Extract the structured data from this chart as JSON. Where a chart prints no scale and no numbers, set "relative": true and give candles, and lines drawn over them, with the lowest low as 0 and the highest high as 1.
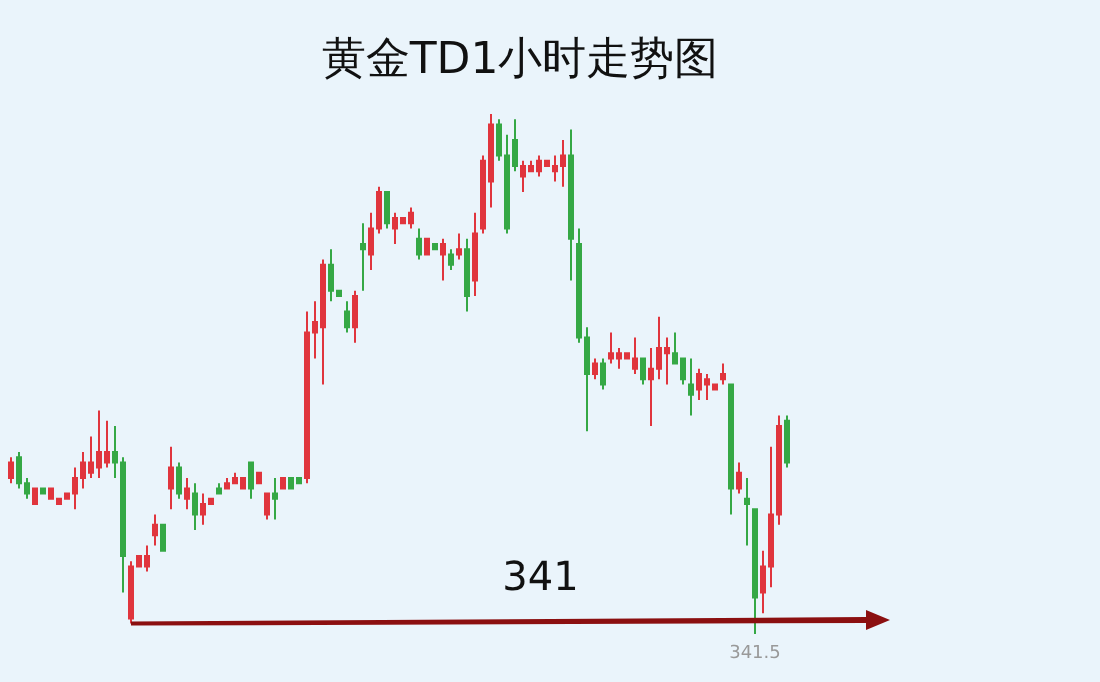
{
  "chart_data": {
    "type": "candlestick",
    "title": "黄金TD1小时走势图",
    "relative": true,
    "colors": [
      "#e0353d",
      "#35a845",
      "#35a845",
      "#e0353d",
      "#35a845",
      "#e0353d",
      "#e0353d",
      "#e0353d",
      "#e0353d",
      "#e0353d",
      "#e0353d",
      "#e0353d",
      "#e0353d",
      "#35a845",
      "#35a845",
      "#e0353d",
      "#e0353d",
      "#e0353d",
      "#e0353d",
      "#35a845",
      "#e0353d",
      "#35a845",
      "#e0353d",
      "#35a845",
      "#e0353d",
      "#e0353d",
      "#35a845",
      "#e0353d",
      "#e0353d",
      "#e0353d",
      "#35a845",
      "#e0353d",
      "#e0353d",
      "#35a845",
      "#e0353d",
      "#35a845",
      "#35a845",
      "#e0353d",
      "#e0353d",
      "#e0353d",
      "#35a845",
      "#35a845",
      "#35a845",
      "#e0353d",
      "#35a845",
      "#e0353d",
      "#e0353d",
      "#35a845",
      "#e0353d",
      "#e0353d",
      "#e0353d",
      "#35a845",
      "#e0353d",
      "#35a845",
      "#e0353d",
      "#35a845",
      "#e0353d",
      "#35a845",
      "#e0353d",
      "#e0353d",
      "#e0353d",
      "#35a845",
      "#35a845",
      "#35a845",
      "#e0353d",
      "#e0353d",
      "#e0353d",
      "#e0353d",
      "#e0353d",
      "#e0353d",
      "#35a845",
      "#35a845",
      "#35a845",
      "#e0353d",
      "#35a845",
      "#e0353d",
      "#e0353d",
      "#e0353d",
      "#e0353d",
      "#35a845",
      "#e0353d",
      "#e0353d",
      "#e0353d",
      "#35a845",
      "#35a845",
      "#35a845",
      "#e0353d",
      "#e0353d",
      "#e0353d",
      "#e0353d",
      "#35a845",
      "#e0353d",
      "#35a845",
      "#35a845",
      "#e0353d",
      "#e0353d",
      "#e0353d",
      "#35a845"
    ],
    "annotations": [
      "341",
      "341.5"
    ],
    "categories": [
      null,
      null,
      null,
      null,
      null,
      null,
      null,
      null,
      null,
      null,
      null,
      null,
      null,
      null,
      null,
      null,
      null,
      null,
      null,
      null,
      null,
      null,
      null,
      null,
      null,
      null,
      null,
      null,
      null,
      null,
      null,
      null,
      null,
      null,
      null,
      null,
      null,
      null,
      null,
      null,
      null,
      null,
      null,
      null,
      null,
      null,
      null,
      null,
      null,
      null,
      null,
      null,
      null,
      null,
      null,
      null,
      null,
      null,
      null,
      null,
      null,
      null,
      null,
      null,
      null,
      null,
      null,
      null,
      null,
      null,
      null,
      null,
      null,
      null,
      null,
      null,
      null,
      null,
      null,
      null,
      null,
      null,
      null,
      null,
      null,
      null,
      null,
      null,
      null,
      null,
      null,
      null,
      null,
      null,
      null,
      null,
      null,
      null
    ],
    "ohlc": [
      [
        0.3,
        0.34,
        0.29,
        0.33
      ],
      [
        0.34,
        0.35,
        0.28,
        0.29
      ],
      [
        0.29,
        0.3,
        0.26,
        0.27
      ],
      [
        0.25,
        0.28,
        0.25,
        0.28
      ],
      [
        0.28,
        0.28,
        0.27,
        0.27
      ],
      [
        0.26,
        0.28,
        0.26,
        0.28
      ],
      [
        0.25,
        0.26,
        0.25,
        0.26
      ],
      [
        0.26,
        0.27,
        0.26,
        0.27
      ],
      [
        0.27,
        0.32,
        0.24,
        0.3
      ],
      [
        0.3,
        0.35,
        0.28,
        0.33
      ],
      [
        0.31,
        0.38,
        0.3,
        0.33
      ],
      [
        0.32,
        0.43,
        0.3,
        0.35
      ],
      [
        0.33,
        0.41,
        0.32,
        0.35
      ],
      [
        0.35,
        0.4,
        0.3,
        0.33
      ],
      [
        0.33,
        0.34,
        0.08,
        0.15
      ],
      [
        0.03,
        0.14,
        0.02,
        0.13
      ],
      [
        0.13,
        0.15,
        0.13,
        0.15
      ],
      [
        0.13,
        0.17,
        0.12,
        0.15
      ],
      [
        0.19,
        0.23,
        0.17,
        0.21
      ],
      [
        0.21,
        0.21,
        0.16,
        0.16
      ],
      [
        0.28,
        0.36,
        0.24,
        0.32
      ],
      [
        0.32,
        0.33,
        0.26,
        0.27
      ],
      [
        0.26,
        0.3,
        0.24,
        0.28
      ],
      [
        0.27,
        0.29,
        0.2,
        0.23
      ],
      [
        0.23,
        0.27,
        0.21,
        0.25
      ],
      [
        0.25,
        0.26,
        0.25,
        0.26
      ],
      [
        0.28,
        0.29,
        0.27,
        0.27
      ],
      [
        0.28,
        0.3,
        0.28,
        0.29
      ],
      [
        0.29,
        0.31,
        0.29,
        0.3
      ],
      [
        0.28,
        0.3,
        0.28,
        0.3
      ],
      [
        0.33,
        0.33,
        0.26,
        0.28
      ],
      [
        0.29,
        0.31,
        0.29,
        0.31
      ],
      [
        0.23,
        0.27,
        0.22,
        0.27
      ],
      [
        0.27,
        0.3,
        0.22,
        0.26
      ],
      [
        0.28,
        0.3,
        0.28,
        0.3
      ],
      [
        0.3,
        0.3,
        0.28,
        0.28
      ],
      [
        0.3,
        0.3,
        0.29,
        0.29
      ],
      [
        0.3,
        0.62,
        0.29,
        0.58
      ],
      [
        0.58,
        0.64,
        0.53,
        0.6
      ],
      [
        0.59,
        0.72,
        0.48,
        0.71
      ],
      [
        0.71,
        0.74,
        0.64,
        0.66
      ],
      [
        0.66,
        0.66,
        0.65,
        0.65
      ],
      [
        0.62,
        0.64,
        0.58,
        0.59
      ],
      [
        0.59,
        0.66,
        0.56,
        0.65
      ],
      [
        0.75,
        0.79,
        0.66,
        0.74
      ],
      [
        0.73,
        0.81,
        0.7,
        0.78
      ],
      [
        0.78,
        0.86,
        0.77,
        0.85
      ],
      [
        0.85,
        0.85,
        0.78,
        0.79
      ],
      [
        0.78,
        0.81,
        0.75,
        0.8
      ],
      [
        0.79,
        0.8,
        0.79,
        0.8
      ],
      [
        0.79,
        0.82,
        0.78,
        0.81
      ],
      [
        0.76,
        0.78,
        0.72,
        0.73
      ],
      [
        0.73,
        0.76,
        0.73,
        0.76
      ],
      [
        0.75,
        0.75,
        0.74,
        0.74
      ],
      [
        0.73,
        0.76,
        0.68,
        0.75
      ],
      [
        0.73,
        0.74,
        0.7,
        0.71
      ],
      [
        0.73,
        0.77,
        0.72,
        0.74
      ],
      [
        0.74,
        0.76,
        0.62,
        0.65
      ],
      [
        0.68,
        0.81,
        0.65,
        0.77
      ],
      [
        0.78,
        0.92,
        0.77,
        0.91
      ],
      [
        0.87,
        1.0,
        0.82,
        0.98
      ],
      [
        0.98,
        0.99,
        0.91,
        0.92
      ],
      [
        0.92,
        0.96,
        0.77,
        0.78
      ],
      [
        0.95,
        0.99,
        0.89,
        0.9
      ],
      [
        0.88,
        0.91,
        0.85,
        0.9
      ],
      [
        0.89,
        0.91,
        0.89,
        0.9
      ],
      [
        0.89,
        0.92,
        0.88,
        0.91
      ],
      [
        0.9,
        0.91,
        0.9,
        0.91
      ],
      [
        0.89,
        0.92,
        0.87,
        0.9
      ],
      [
        0.9,
        0.95,
        0.86,
        0.92
      ],
      [
        0.92,
        0.97,
        0.68,
        0.76
      ],
      [
        0.75,
        0.78,
        0.56,
        0.57
      ],
      [
        0.57,
        0.59,
        0.39,
        0.5
      ],
      [
        0.5,
        0.53,
        0.49,
        0.52
      ],
      [
        0.52,
        0.53,
        0.47,
        0.48
      ],
      [
        0.53,
        0.58,
        0.52,
        0.54
      ],
      [
        0.53,
        0.55,
        0.51,
        0.54
      ],
      [
        0.53,
        0.54,
        0.53,
        0.54
      ],
      [
        0.51,
        0.57,
        0.5,
        0.53
      ],
      [
        0.53,
        0.53,
        0.48,
        0.49
      ],
      [
        0.49,
        0.55,
        0.4,
        0.51
      ],
      [
        0.51,
        0.61,
        0.49,
        0.55
      ],
      [
        0.54,
        0.57,
        0.48,
        0.55
      ],
      [
        0.54,
        0.58,
        0.52,
        0.52
      ],
      [
        0.53,
        0.53,
        0.48,
        0.49
      ],
      [
        0.48,
        0.53,
        0.42,
        0.46
      ],
      [
        0.47,
        0.51,
        0.45,
        0.5
      ],
      [
        0.48,
        0.5,
        0.45,
        0.49
      ],
      [
        0.47,
        0.48,
        0.47,
        0.48
      ],
      [
        0.49,
        0.52,
        0.48,
        0.5
      ],
      [
        0.48,
        0.48,
        0.23,
        0.28
      ],
      [
        0.28,
        0.33,
        0.27,
        0.31
      ],
      [
        0.26,
        0.3,
        0.17,
        0.25
      ],
      [
        0.24,
        0.24,
        0.0,
        0.07
      ],
      [
        0.08,
        0.16,
        0.04,
        0.13
      ],
      [
        0.13,
        0.36,
        0.09,
        0.23
      ],
      [
        0.23,
        0.42,
        0.21,
        0.4
      ],
      [
        0.41,
        0.42,
        0.32,
        0.33
      ]
    ]
  }
}
